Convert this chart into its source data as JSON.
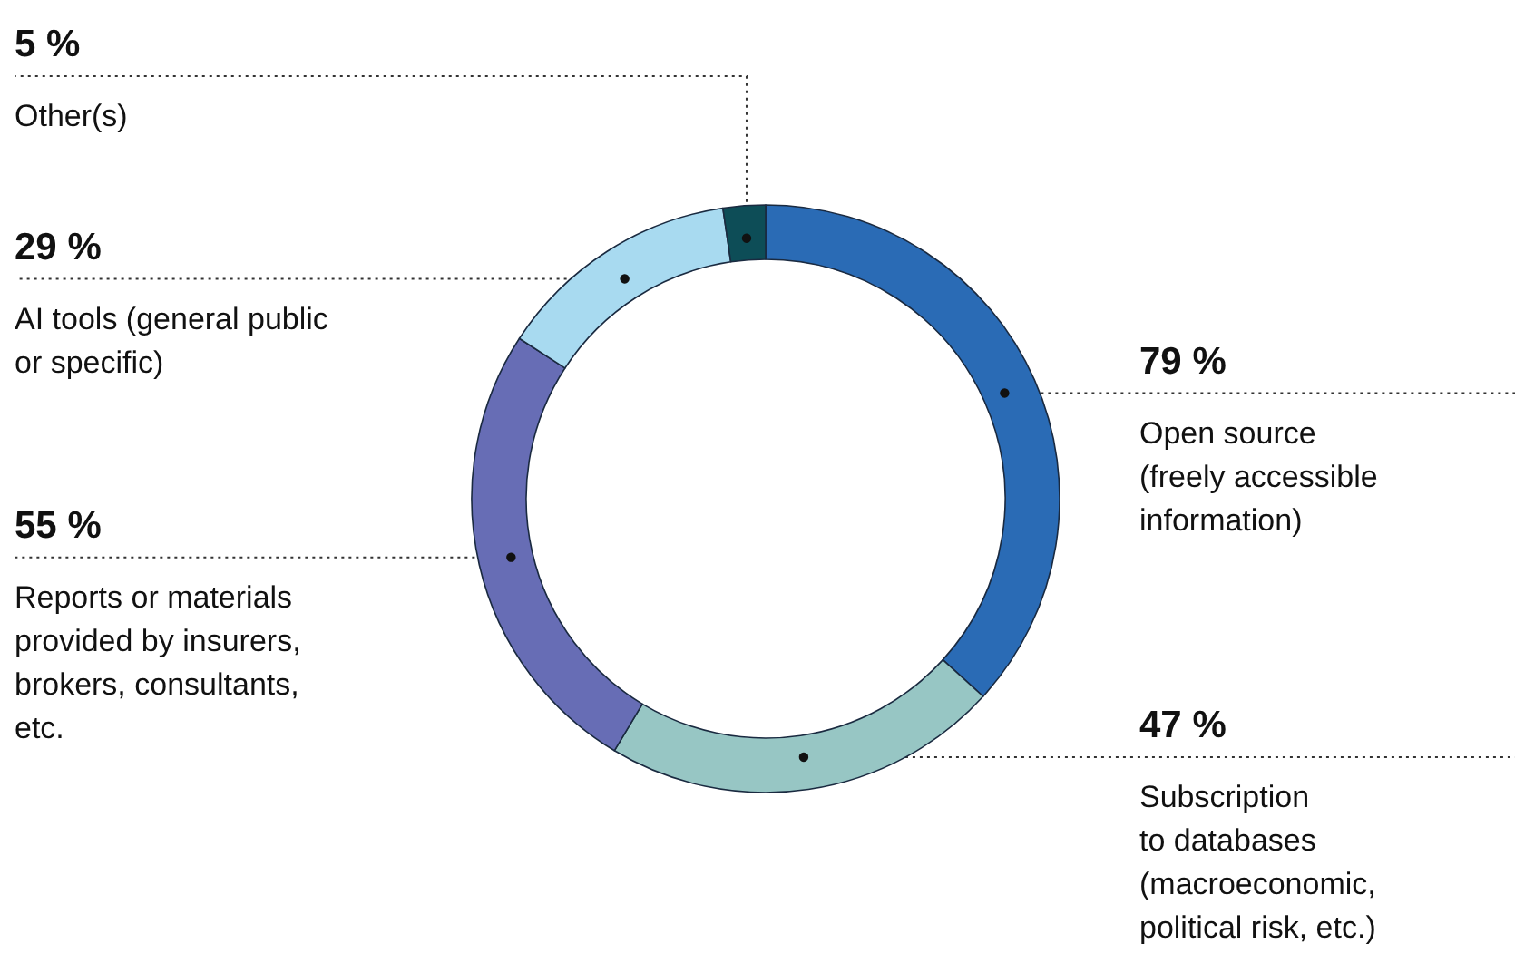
{
  "chart_data": {
    "type": "donut",
    "categories": [
      "Open source\n(freely accessible\ninformation)",
      "Subscription\nto databases\n(macroeconomic,\npolitical risk, etc.)",
      "Reports or materials\nprovided by insurers,\nbrokers, consultants,\netc.",
      "AI tools (general public\nor specific)",
      "Other(s)"
    ],
    "values": [
      79,
      47,
      55,
      29,
      5
    ],
    "value_labels": [
      "79 %",
      "47 %",
      "55 %",
      "29 %",
      "5 %"
    ],
    "colors": [
      "#2a6bb5",
      "#97c6c4",
      "#676db5",
      "#a8daf0",
      "#0d4d57"
    ]
  }
}
